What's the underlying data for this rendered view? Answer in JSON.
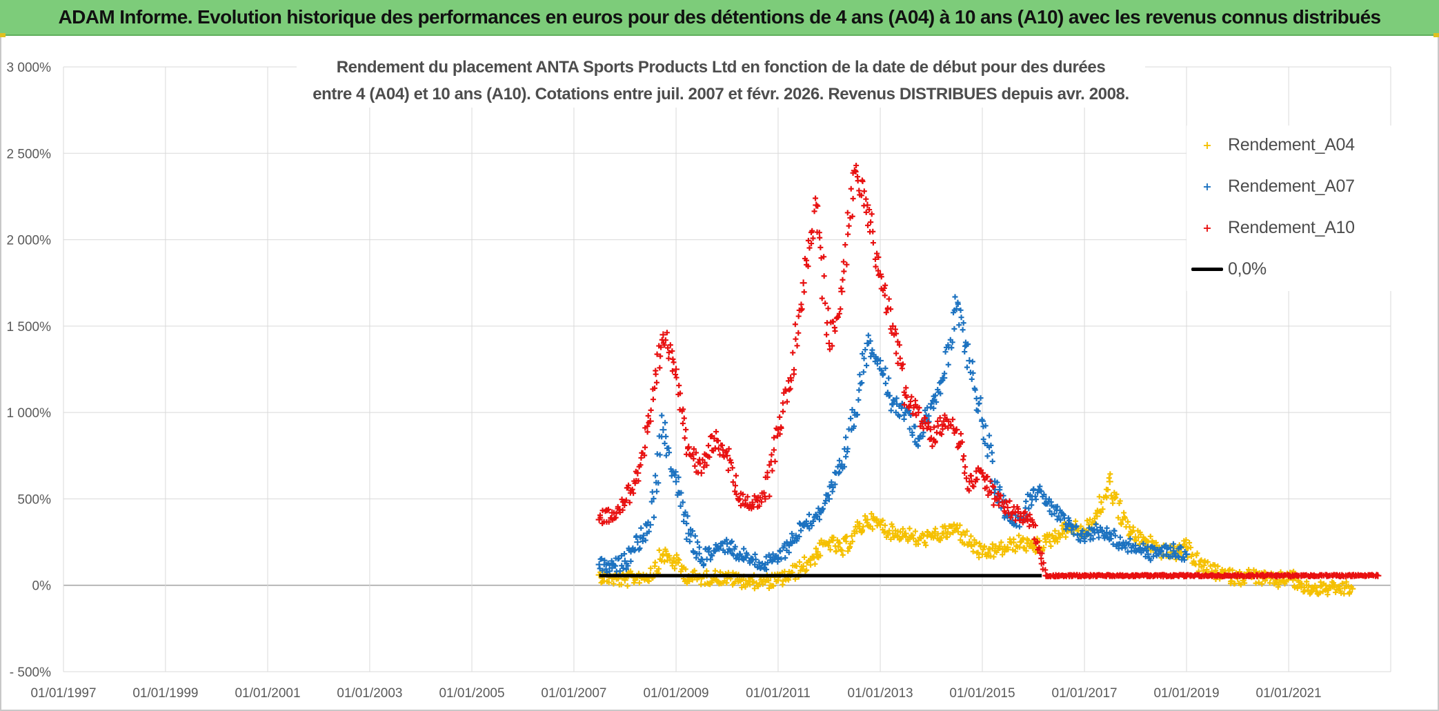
{
  "banner": {
    "title": "ADAM Informe. Evolution historique des performances en euros pour des détentions de 4 ans (A04) à 10 ans (A10) avec les revenus connus distribués"
  },
  "colors": {
    "banner_bg": "#7dcc7a",
    "series_a04": "#f5c000",
    "series_a07": "#1c72c0",
    "series_a10": "#e81010",
    "zero_line": "#000000"
  },
  "chart_data": {
    "type": "scatter",
    "title_lines": [
      "Rendement du placement ANTA Sports Products Ltd en fonction de la date de début pour des durées",
      "entre 4 (A04) et 10 ans (A10). Cotations entre juil. 2007 et févr. 2026. Revenus DISTRIBUES depuis avr. 2008."
    ],
    "x_axis": {
      "type": "date",
      "range": [
        "1997-01-01",
        "2023-01-01"
      ],
      "tick_labels": [
        "01/01/1997",
        "01/01/1999",
        "01/01/2001",
        "01/01/2003",
        "01/01/2005",
        "01/01/2007",
        "01/01/2009",
        "01/01/2011",
        "01/01/2013",
        "01/01/2015",
        "01/01/2017",
        "01/01/2019",
        "01/01/2021"
      ]
    },
    "y_axis": {
      "unit": "%",
      "range": [
        -500,
        3000
      ],
      "tick_values": [
        -500,
        0,
        500,
        1000,
        1500,
        2000,
        2500,
        3000
      ],
      "tick_labels": [
        "- 500%",
        "0%",
        "500%",
        "1 000%",
        "1 500%",
        "2 000%",
        "2 500%",
        "3 000%"
      ]
    },
    "grid": true,
    "legend": {
      "placement": "top-right",
      "entries": [
        "Rendement_A04",
        "Rendement_A07",
        "Rendement_A10",
        "0,0%"
      ]
    },
    "series": [
      {
        "name": "Rendement_A04",
        "marker": "plus",
        "color": "#f5c000",
        "points": [
          [
            "2007-07-01",
            60
          ],
          [
            "2007-10-01",
            40
          ],
          [
            "2008-01-01",
            30
          ],
          [
            "2008-04-01",
            50
          ],
          [
            "2008-07-01",
            60
          ],
          [
            "2008-10-01",
            180
          ],
          [
            "2009-01-01",
            130
          ],
          [
            "2009-04-01",
            50
          ],
          [
            "2009-07-01",
            40
          ],
          [
            "2009-10-01",
            50
          ],
          [
            "2010-01-01",
            40
          ],
          [
            "2010-04-01",
            30
          ],
          [
            "2010-07-01",
            20
          ],
          [
            "2010-10-01",
            20
          ],
          [
            "2011-01-01",
            30
          ],
          [
            "2011-04-01",
            60
          ],
          [
            "2011-07-01",
            110
          ],
          [
            "2011-10-01",
            180
          ],
          [
            "2012-01-01",
            250
          ],
          [
            "2012-04-01",
            200
          ],
          [
            "2012-07-01",
            300
          ],
          [
            "2012-10-01",
            380
          ],
          [
            "2013-01-01",
            350
          ],
          [
            "2013-04-01",
            300
          ],
          [
            "2013-07-01",
            300
          ],
          [
            "2013-10-01",
            260
          ],
          [
            "2014-01-01",
            280
          ],
          [
            "2014-04-01",
            300
          ],
          [
            "2014-07-01",
            330
          ],
          [
            "2014-10-01",
            250
          ],
          [
            "2015-01-01",
            180
          ],
          [
            "2015-04-01",
            200
          ],
          [
            "2015-07-01",
            220
          ],
          [
            "2015-10-01",
            250
          ],
          [
            "2016-01-01",
            220
          ],
          [
            "2016-04-01",
            250
          ],
          [
            "2016-07-01",
            300
          ],
          [
            "2016-10-01",
            340
          ],
          [
            "2017-01-01",
            310
          ],
          [
            "2017-04-01",
            400
          ],
          [
            "2017-07-01",
            600
          ],
          [
            "2017-10-01",
            380
          ],
          [
            "2018-01-01",
            280
          ],
          [
            "2018-04-01",
            250
          ],
          [
            "2018-07-01",
            200
          ],
          [
            "2018-10-01",
            180
          ],
          [
            "2019-01-01",
            220
          ],
          [
            "2019-04-01",
            120
          ],
          [
            "2019-07-01",
            80
          ],
          [
            "2019-10-01",
            60
          ],
          [
            "2020-01-01",
            40
          ],
          [
            "2020-04-01",
            60
          ],
          [
            "2020-07-01",
            40
          ],
          [
            "2020-10-01",
            20
          ],
          [
            "2021-01-01",
            0
          ],
          [
            "2021-04-01",
            -10
          ],
          [
            "2021-07-01",
            -20
          ],
          [
            "2021-10-01",
            -20
          ],
          [
            "2022-01-01",
            -20
          ],
          [
            "2022-04-01",
            -20
          ]
        ]
      },
      {
        "name": "Rendement_A07",
        "marker": "plus",
        "color": "#1c72c0",
        "points": [
          [
            "2007-07-01",
            120
          ],
          [
            "2007-10-01",
            100
          ],
          [
            "2008-01-01",
            140
          ],
          [
            "2008-04-01",
            250
          ],
          [
            "2008-07-01",
            350
          ],
          [
            "2008-10-01",
            900
          ],
          [
            "2009-01-01",
            600
          ],
          [
            "2009-04-01",
            300
          ],
          [
            "2009-07-01",
            150
          ],
          [
            "2009-10-01",
            200
          ],
          [
            "2010-01-01",
            240
          ],
          [
            "2010-04-01",
            180
          ],
          [
            "2010-07-01",
            150
          ],
          [
            "2010-10-01",
            120
          ],
          [
            "2011-01-01",
            160
          ],
          [
            "2011-04-01",
            250
          ],
          [
            "2011-07-01",
            350
          ],
          [
            "2011-10-01",
            400
          ],
          [
            "2012-01-01",
            500
          ],
          [
            "2012-04-01",
            700
          ],
          [
            "2012-07-01",
            1000
          ],
          [
            "2012-10-01",
            1400
          ],
          [
            "2013-01-01",
            1300
          ],
          [
            "2013-04-01",
            1050
          ],
          [
            "2013-07-01",
            1000
          ],
          [
            "2013-10-01",
            850
          ],
          [
            "2014-01-01",
            1050
          ],
          [
            "2014-04-01",
            1200
          ],
          [
            "2014-07-01",
            1600
          ],
          [
            "2014-10-01",
            1300
          ],
          [
            "2015-01-01",
            950
          ],
          [
            "2015-04-01",
            600
          ],
          [
            "2015-07-01",
            400
          ],
          [
            "2015-10-01",
            380
          ],
          [
            "2016-01-01",
            550
          ],
          [
            "2016-04-01",
            500
          ],
          [
            "2016-07-01",
            400
          ],
          [
            "2016-10-01",
            320
          ],
          [
            "2017-01-01",
            280
          ],
          [
            "2017-04-01",
            320
          ],
          [
            "2017-07-01",
            300
          ],
          [
            "2017-10-01",
            230
          ],
          [
            "2018-01-01",
            230
          ],
          [
            "2018-04-01",
            180
          ],
          [
            "2018-07-01",
            200
          ],
          [
            "2018-10-01",
            200
          ],
          [
            "2019-01-01",
            180
          ]
        ]
      },
      {
        "name": "Rendement_A10",
        "marker": "plus",
        "color": "#e81010",
        "points": [
          [
            "2007-07-01",
            380
          ],
          [
            "2007-10-01",
            420
          ],
          [
            "2008-01-01",
            480
          ],
          [
            "2008-04-01",
            650
          ],
          [
            "2008-07-01",
            950
          ],
          [
            "2008-10-01",
            1450
          ],
          [
            "2009-01-01",
            1250
          ],
          [
            "2009-04-01",
            800
          ],
          [
            "2009-07-01",
            650
          ],
          [
            "2009-10-01",
            850
          ],
          [
            "2010-01-01",
            750
          ],
          [
            "2010-04-01",
            500
          ],
          [
            "2010-07-01",
            480
          ],
          [
            "2010-10-01",
            500
          ],
          [
            "2011-01-01",
            900
          ],
          [
            "2011-04-01",
            1200
          ],
          [
            "2011-07-01",
            1750
          ],
          [
            "2011-10-01",
            2200
          ],
          [
            "2012-01-01",
            1400
          ],
          [
            "2012-04-01",
            1700
          ],
          [
            "2012-07-01",
            2400
          ],
          [
            "2012-10-01",
            2200
          ],
          [
            "2013-01-01",
            1800
          ],
          [
            "2013-04-01",
            1500
          ],
          [
            "2013-07-01",
            1100
          ],
          [
            "2013-10-01",
            1000
          ],
          [
            "2014-01-01",
            850
          ],
          [
            "2014-04-01",
            950
          ],
          [
            "2014-07-01",
            900
          ],
          [
            "2014-10-01",
            600
          ],
          [
            "2015-01-01",
            650
          ],
          [
            "2015-04-01",
            500
          ],
          [
            "2015-07-01",
            450
          ],
          [
            "2015-10-01",
            400
          ],
          [
            "2016-01-01",
            350
          ],
          [
            "2016-04-01",
            0
          ],
          [
            "2016-07-01",
            0
          ],
          [
            "2016-10-01",
            0
          ],
          [
            "2017-01-01",
            0
          ],
          [
            "2017-04-01",
            0
          ],
          [
            "2017-07-01",
            0
          ],
          [
            "2017-10-01",
            0
          ],
          [
            "2018-01-01",
            0
          ],
          [
            "2018-04-01",
            0
          ],
          [
            "2018-07-01",
            0
          ],
          [
            "2018-10-01",
            0
          ],
          [
            "2019-01-01",
            0
          ],
          [
            "2019-04-01",
            0
          ],
          [
            "2019-07-01",
            0
          ],
          [
            "2019-10-01",
            0
          ],
          [
            "2020-01-01",
            0
          ],
          [
            "2020-04-01",
            0
          ],
          [
            "2020-07-01",
            0
          ],
          [
            "2020-10-01",
            0
          ],
          [
            "2021-01-01",
            0
          ],
          [
            "2021-04-01",
            0
          ],
          [
            "2021-07-01",
            0
          ],
          [
            "2021-10-01",
            0
          ],
          [
            "2022-01-01",
            0
          ],
          [
            "2022-04-01",
            0
          ],
          [
            "2022-07-01",
            0
          ],
          [
            "2022-10-01",
            0
          ]
        ]
      },
      {
        "name": "0,0%",
        "marker": "line",
        "color": "#000000",
        "points": [
          [
            "2007-07-01",
            0
          ],
          [
            "2016-03-01",
            0
          ]
        ]
      }
    ]
  }
}
